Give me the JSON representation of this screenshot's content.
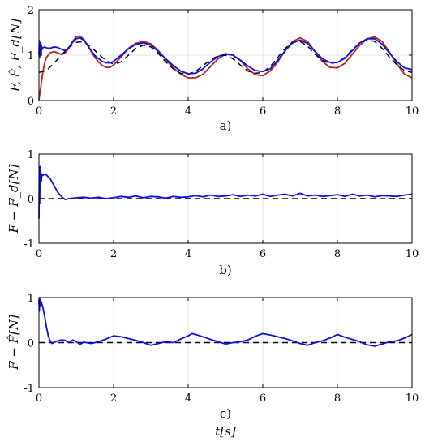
{
  "chart_data": [
    {
      "type": "line",
      "panel_label": "a)",
      "ylabel": "F, F̂, F_d[N]",
      "xlim": [
        0,
        10
      ],
      "ylim": [
        0,
        2
      ],
      "xticks": [
        0,
        2,
        4,
        6,
        8,
        10
      ],
      "yticks": [
        0,
        1,
        2
      ],
      "grid": true,
      "colors": {
        "red": "#b22222",
        "black": "#000000",
        "blue": "#1010e0"
      },
      "annotations": [],
      "series": [
        {
          "color": "red",
          "dash": "solid",
          "x": [
            0,
            0.05,
            0.1,
            0.15,
            0.2,
            0.3,
            0.4,
            0.5,
            0.6,
            0.7,
            0.8,
            0.9,
            1.0,
            1.1,
            1.2,
            1.3,
            1.4,
            1.5,
            1.6,
            1.7,
            1.8,
            1.9,
            2.0,
            2.2,
            2.4,
            2.6,
            2.8,
            3.0,
            3.2,
            3.4,
            3.6,
            3.8,
            4.0,
            4.2,
            4.4,
            4.6,
            4.8,
            5.0,
            5.2,
            5.4,
            5.6,
            5.8,
            6.0,
            6.2,
            6.4,
            6.6,
            6.8,
            7.0,
            7.2,
            7.4,
            7.6,
            7.8,
            8.0,
            8.2,
            8.4,
            8.6,
            8.8,
            9.0,
            9.2,
            9.4,
            9.6,
            9.8,
            10.0
          ],
          "y": [
            0.02,
            0.3,
            0.6,
            0.82,
            0.95,
            1.05,
            1.08,
            1.05,
            1.02,
            1.05,
            1.15,
            1.3,
            1.4,
            1.42,
            1.35,
            1.22,
            1.08,
            0.95,
            0.85,
            0.77,
            0.73,
            0.73,
            0.78,
            0.96,
            1.15,
            1.26,
            1.3,
            1.25,
            1.1,
            0.9,
            0.72,
            0.58,
            0.5,
            0.5,
            0.58,
            0.75,
            0.92,
            1.02,
            1.0,
            0.88,
            0.7,
            0.57,
            0.55,
            0.65,
            0.85,
            1.1,
            1.3,
            1.38,
            1.3,
            1.08,
            0.86,
            0.73,
            0.72,
            0.82,
            1.02,
            1.22,
            1.36,
            1.4,
            1.3,
            1.06,
            0.8,
            0.58,
            0.5
          ]
        },
        {
          "color": "black",
          "dash": "dashed",
          "x": [
            0,
            0.2,
            0.4,
            0.6,
            0.8,
            1.0,
            1.2,
            1.4,
            1.6,
            1.8,
            2.0,
            2.2,
            2.4,
            2.6,
            2.8,
            3.0,
            3.2,
            3.4,
            3.6,
            3.8,
            4.0,
            4.2,
            4.4,
            4.6,
            4.8,
            5.0,
            5.2,
            5.4,
            5.6,
            5.8,
            6.0,
            6.2,
            6.4,
            6.6,
            6.8,
            7.0,
            7.2,
            7.4,
            7.6,
            7.8,
            8.0,
            8.2,
            8.4,
            8.6,
            8.8,
            9.0,
            9.2,
            9.4,
            9.6,
            9.8,
            10.0
          ],
          "y": [
            0.62,
            0.66,
            0.82,
            1.0,
            1.17,
            1.28,
            1.3,
            1.18,
            1.02,
            0.88,
            0.8,
            0.85,
            1.0,
            1.15,
            1.22,
            1.18,
            1.04,
            0.85,
            0.7,
            0.6,
            0.58,
            0.64,
            0.77,
            0.9,
            0.98,
            1.0,
            0.92,
            0.78,
            0.65,
            0.6,
            0.62,
            0.75,
            0.95,
            1.15,
            1.28,
            1.3,
            1.2,
            1.02,
            0.88,
            0.82,
            0.84,
            0.95,
            1.12,
            1.27,
            1.34,
            1.3,
            1.15,
            0.95,
            0.78,
            0.66,
            0.62
          ]
        },
        {
          "color": "blue",
          "dash": "solid",
          "x": [
            0,
            0.01,
            0.02,
            0.03,
            0.04,
            0.05,
            0.06,
            0.07,
            0.08,
            0.1,
            0.15,
            0.2,
            0.3,
            0.4,
            0.5,
            0.6,
            0.7,
            0.8,
            0.9,
            1.0,
            1.1,
            1.2,
            1.3,
            1.4,
            1.5,
            1.6,
            1.7,
            1.8,
            1.9,
            2.0,
            2.2,
            2.4,
            2.6,
            2.8,
            3.0,
            3.2,
            3.4,
            3.6,
            3.8,
            4.0,
            4.2,
            4.4,
            4.6,
            4.8,
            5.0,
            5.2,
            5.4,
            5.6,
            5.8,
            6.0,
            6.2,
            6.4,
            6.6,
            6.8,
            7.0,
            7.2,
            7.4,
            7.6,
            7.8,
            8.0,
            8.2,
            8.4,
            8.6,
            8.8,
            9.0,
            9.2,
            9.4,
            9.6,
            9.8,
            10.0
          ],
          "y": [
            1.0,
            1.32,
            0.95,
            1.25,
            1.05,
            1.28,
            1.02,
            1.2,
            1.12,
            1.16,
            1.18,
            1.16,
            1.15,
            1.18,
            1.17,
            1.13,
            1.1,
            1.17,
            1.28,
            1.36,
            1.38,
            1.33,
            1.22,
            1.1,
            0.99,
            0.92,
            0.86,
            0.83,
            0.83,
            0.86,
            1.0,
            1.14,
            1.24,
            1.27,
            1.22,
            1.08,
            0.92,
            0.77,
            0.65,
            0.59,
            0.6,
            0.7,
            0.85,
            0.97,
            1.03,
            1.0,
            0.89,
            0.76,
            0.66,
            0.64,
            0.7,
            0.89,
            1.1,
            1.27,
            1.33,
            1.26,
            1.08,
            0.92,
            0.84,
            0.84,
            0.93,
            1.1,
            1.27,
            1.36,
            1.36,
            1.24,
            1.04,
            0.85,
            0.72,
            0.68
          ]
        }
      ]
    },
    {
      "type": "line",
      "panel_label": "b)",
      "ylabel": "F − F_d[N]",
      "xlim": [
        0,
        10
      ],
      "ylim": [
        -1,
        1
      ],
      "xticks": [
        0,
        2,
        4,
        6,
        8,
        10
      ],
      "yticks": [
        -1,
        0,
        1
      ],
      "grid": true,
      "colors": {
        "black": "#000000",
        "blue": "#1010e0"
      },
      "series": [
        {
          "color": "black",
          "dash": "dashed",
          "x": [
            0,
            10
          ],
          "y": [
            0,
            0
          ]
        },
        {
          "color": "blue",
          "dash": "solid",
          "x": [
            0,
            0.01,
            0.02,
            0.03,
            0.04,
            0.05,
            0.06,
            0.08,
            0.1,
            0.15,
            0.2,
            0.3,
            0.4,
            0.5,
            0.6,
            0.7,
            0.8,
            1.0,
            1.2,
            1.4,
            1.6,
            1.8,
            2.0,
            2.2,
            2.4,
            2.6,
            2.8,
            3.0,
            3.2,
            3.4,
            3.6,
            3.8,
            4.0,
            4.2,
            4.4,
            4.6,
            4.8,
            5.0,
            5.2,
            5.4,
            5.6,
            5.8,
            6.0,
            6.2,
            6.4,
            6.6,
            6.8,
            7.0,
            7.2,
            7.4,
            7.6,
            7.8,
            8.0,
            8.2,
            8.4,
            8.6,
            8.8,
            9.0,
            9.2,
            9.4,
            9.6,
            9.8,
            10.0
          ],
          "y": [
            -0.45,
            0.62,
            -0.1,
            0.72,
            0.2,
            0.6,
            0.38,
            0.55,
            0.52,
            0.55,
            0.53,
            0.45,
            0.3,
            0.15,
            0.05,
            -0.02,
            0.0,
            0.02,
            0.03,
            0.01,
            0.03,
            0.0,
            0.02,
            0.05,
            0.03,
            0.06,
            0.02,
            0.05,
            0.04,
            0.01,
            0.05,
            0.03,
            0.04,
            0.07,
            0.04,
            0.08,
            0.05,
            0.06,
            0.09,
            0.05,
            0.08,
            0.06,
            0.1,
            0.05,
            0.08,
            0.1,
            0.06,
            0.12,
            0.06,
            0.08,
            0.05,
            0.07,
            0.09,
            0.05,
            0.1,
            0.06,
            0.08,
            0.04,
            0.07,
            0.06,
            0.05,
            0.08,
            0.1
          ]
        }
      ]
    },
    {
      "type": "line",
      "panel_label": "c)",
      "ylabel": "F − F̂[N]",
      "xlabel": "t[s]",
      "xlim": [
        0,
        10
      ],
      "ylim": [
        -1,
        1
      ],
      "xticks": [
        0,
        2,
        4,
        6,
        8,
        10
      ],
      "yticks": [
        -1,
        0,
        1
      ],
      "grid": true,
      "colors": {
        "black": "#000000",
        "blue": "#1010e0"
      },
      "series": [
        {
          "color": "black",
          "dash": "dashed",
          "x": [
            0,
            10
          ],
          "y": [
            0,
            0
          ]
        },
        {
          "color": "blue",
          "dash": "solid",
          "x": [
            0,
            0.01,
            0.02,
            0.03,
            0.04,
            0.06,
            0.08,
            0.1,
            0.15,
            0.2,
            0.25,
            0.3,
            0.35,
            0.4,
            0.5,
            0.6,
            0.7,
            0.8,
            0.9,
            1.0,
            1.1,
            1.2,
            1.4,
            1.6,
            1.8,
            2.0,
            2.2,
            2.4,
            2.6,
            2.8,
            3.0,
            3.2,
            3.4,
            3.6,
            3.8,
            4.0,
            4.1,
            4.2,
            4.4,
            4.6,
            4.8,
            5.0,
            5.2,
            5.4,
            5.6,
            5.8,
            6.0,
            6.2,
            6.4,
            6.6,
            6.8,
            7.0,
            7.2,
            7.4,
            7.6,
            7.8,
            8.0,
            8.2,
            8.4,
            8.6,
            8.8,
            9.0,
            9.2,
            9.4,
            9.6,
            9.8,
            10.0
          ],
          "y": [
            0.95,
            0.7,
            1.0,
            0.8,
            0.95,
            0.9,
            0.85,
            0.8,
            0.6,
            0.35,
            0.15,
            0.04,
            -0.02,
            0.0,
            0.04,
            0.06,
            0.05,
            0.0,
            0.06,
            0.02,
            -0.04,
            0.01,
            -0.02,
            0.02,
            0.08,
            0.15,
            0.13,
            0.09,
            0.05,
            0.0,
            -0.06,
            -0.02,
            0.02,
            0.0,
            0.08,
            0.15,
            0.2,
            0.18,
            0.13,
            0.07,
            0.02,
            -0.03,
            0.0,
            0.02,
            0.06,
            0.14,
            0.2,
            0.17,
            0.13,
            0.09,
            0.04,
            -0.02,
            -0.06,
            0.0,
            0.04,
            0.1,
            0.18,
            0.12,
            0.07,
            0.02,
            -0.05,
            -0.08,
            -0.03,
            0.02,
            0.04,
            0.1,
            0.18
          ]
        }
      ]
    }
  ]
}
